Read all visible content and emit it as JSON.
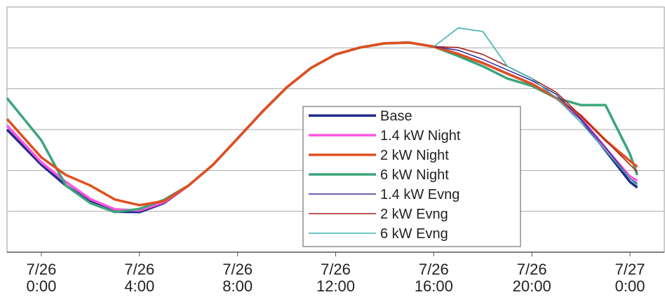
{
  "chart_data": {
    "type": "line",
    "x": [
      -1.4,
      0,
      1,
      2,
      3,
      4,
      5,
      6,
      7,
      8,
      9,
      10,
      11,
      12,
      13,
      14,
      15,
      16,
      17,
      18,
      19,
      20,
      21,
      22,
      23,
      24,
      24.3
    ],
    "xlim": [
      -1.4,
      25.4
    ],
    "xticks": [
      {
        "value": 0,
        "label": "7/26 0:00"
      },
      {
        "value": 4,
        "label": "7/26 4:00"
      },
      {
        "value": 8,
        "label": "7/26 8:00"
      },
      {
        "value": 12,
        "label": "7/26 12:00"
      },
      {
        "value": 16,
        "label": "7/26 16:00"
      },
      {
        "value": 20,
        "label": "7/26 20:00"
      },
      {
        "value": 24,
        "label": "7/27 0:00"
      }
    ],
    "ylim": [
      0,
      6
    ],
    "yticks": [
      1,
      2,
      3,
      4,
      5
    ],
    "grid": true,
    "series": [
      {
        "name": "Base",
        "color": "#1f2a8a",
        "values": [
          3.0,
          2.14,
          1.63,
          1.25,
          0.99,
          0.98,
          1.2,
          1.63,
          2.14,
          2.78,
          3.43,
          4.03,
          4.51,
          4.84,
          5.01,
          5.11,
          5.13,
          5.03,
          4.85,
          4.63,
          4.37,
          4.12,
          3.77,
          3.26,
          2.49,
          1.72,
          1.58
        ]
      },
      {
        "name": "1.4 kW Night",
        "color": "#ff55dd",
        "values": [
          3.1,
          2.2,
          1.72,
          1.3,
          1.05,
          1.02,
          1.22,
          1.63,
          2.14,
          2.78,
          3.43,
          4.03,
          4.51,
          4.84,
          5.01,
          5.11,
          5.13,
          5.03,
          4.85,
          4.63,
          4.37,
          4.12,
          3.77,
          3.28,
          2.55,
          1.85,
          1.75
        ]
      },
      {
        "name": "2 kW Night",
        "color": "#e0501e",
        "values": [
          3.26,
          2.32,
          1.89,
          1.63,
          1.29,
          1.15,
          1.25,
          1.63,
          2.14,
          2.78,
          3.43,
          4.03,
          4.51,
          4.84,
          5.01,
          5.11,
          5.13,
          5.03,
          4.85,
          4.63,
          4.37,
          4.12,
          3.77,
          3.34,
          2.74,
          2.23,
          2.09
        ]
      },
      {
        "name": "6 kW Night",
        "color": "#3aa57a",
        "values": [
          3.77,
          2.74,
          1.63,
          1.2,
          0.98,
          1.06,
          1.28,
          1.63,
          2.14,
          2.78,
          3.43,
          4.03,
          4.51,
          4.84,
          5.01,
          5.11,
          5.13,
          5.03,
          4.8,
          4.55,
          4.25,
          4.07,
          3.77,
          3.6,
          3.6,
          2.4,
          1.89
        ]
      },
      {
        "name": "1.4 kW Evng",
        "color": "#3a2fa0",
        "values": [
          null,
          null,
          null,
          null,
          null,
          null,
          null,
          null,
          null,
          null,
          null,
          null,
          null,
          null,
          null,
          null,
          null,
          5.03,
          4.94,
          4.72,
          4.46,
          4.2,
          3.86,
          3.26,
          2.57,
          1.8,
          1.68
        ]
      },
      {
        "name": "2 kW Evng",
        "color": "#a8241c",
        "values": [
          null,
          null,
          null,
          null,
          null,
          null,
          null,
          null,
          null,
          null,
          null,
          null,
          null,
          null,
          null,
          null,
          null,
          5.03,
          5.01,
          4.84,
          4.55,
          4.25,
          3.91,
          3.34,
          2.74,
          2.14,
          1.97
        ]
      },
      {
        "name": "6 kW Evng",
        "color": "#3bb3b0",
        "values": [
          null,
          null,
          null,
          null,
          null,
          null,
          null,
          null,
          null,
          null,
          null,
          null,
          null,
          null,
          null,
          null,
          null,
          5.03,
          5.49,
          5.4,
          4.55,
          4.25,
          3.77,
          3.17,
          2.49,
          1.8,
          1.63
        ]
      }
    ]
  }
}
